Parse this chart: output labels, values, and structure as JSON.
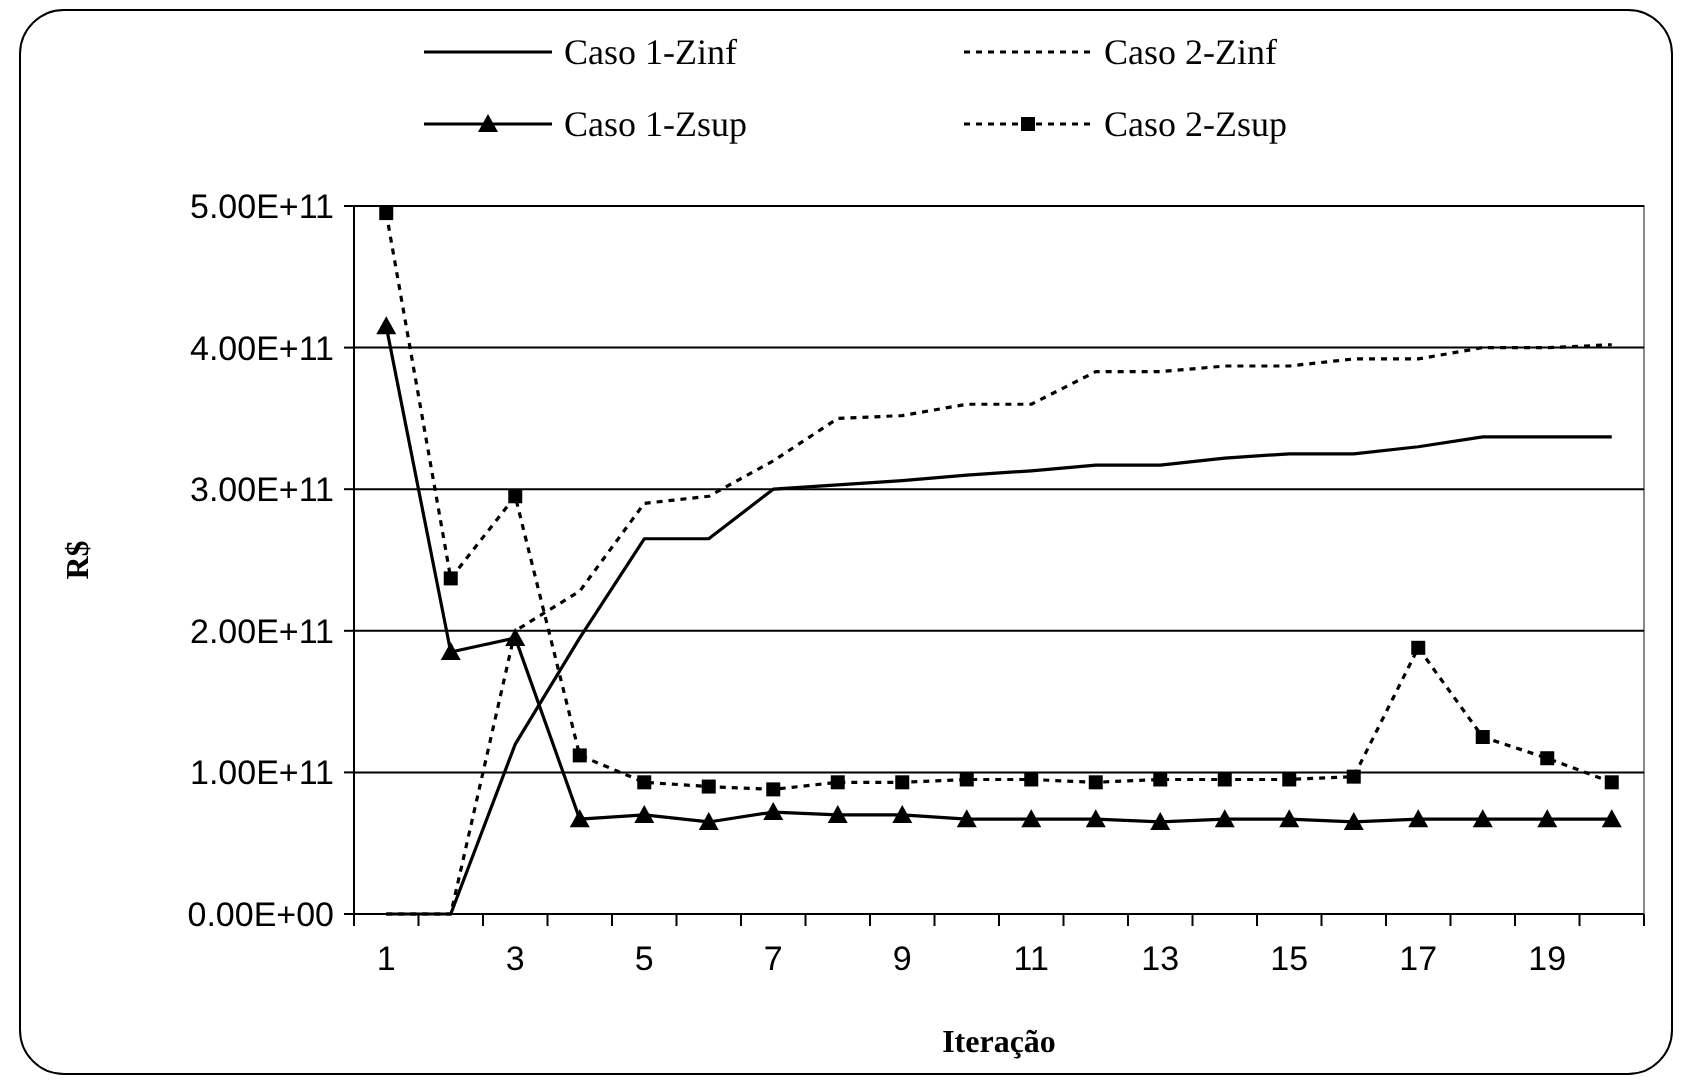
{
  "chart_data": {
    "type": "line",
    "xlabel": "Iteração",
    "ylabel": "R$",
    "x": [
      1,
      2,
      3,
      4,
      5,
      6,
      7,
      8,
      9,
      10,
      11,
      12,
      13,
      14,
      15,
      16,
      17,
      18,
      19,
      20
    ],
    "xlim": [
      0.5,
      20.5
    ],
    "xticks": [
      {
        "value": 0.5,
        "label": null
      },
      1,
      {
        "value": 1.5,
        "label": null
      },
      {
        "value": 2.5,
        "label": null
      },
      3,
      {
        "value": 3.5,
        "label": null
      },
      {
        "value": 4.5,
        "label": null
      },
      5,
      {
        "value": 5.5,
        "label": null
      },
      {
        "value": 6.5,
        "label": null
      },
      7,
      {
        "value": 7.5,
        "label": null
      },
      {
        "value": 8.5,
        "label": null
      },
      9,
      {
        "value": 9.5,
        "label": null
      },
      {
        "value": 10.5,
        "label": null
      },
      11,
      {
        "value": 11.5,
        "label": null
      },
      {
        "value": 12.5,
        "label": null
      },
      13,
      {
        "value": 13.5,
        "label": null
      },
      {
        "value": 14.5,
        "label": null
      },
      15,
      {
        "value": 15.5,
        "label": null
      },
      {
        "value": 16.5,
        "label": null
      },
      17,
      {
        "value": 17.5,
        "label": null
      },
      {
        "value": 18.5,
        "label": null
      },
      19,
      {
        "value": 19.5,
        "label": null
      },
      {
        "value": 20.5,
        "label": null
      }
    ],
    "ylim": [
      0,
      500000000000
    ],
    "yticks": [
      {
        "value": 0,
        "label": "0.00E+00"
      },
      {
        "value": 100000000000,
        "label": "1.00E+11"
      },
      {
        "value": 200000000000,
        "label": "2.00E+11"
      },
      {
        "value": 300000000000,
        "label": "3.00E+11"
      },
      {
        "value": 400000000000,
        "label": "4.00E+11"
      },
      {
        "value": 500000000000,
        "label": "5.00E+11"
      }
    ],
    "grid": "y",
    "legend": "top",
    "series": [
      {
        "name": "Caso 1-Zinf",
        "color": "#000000",
        "marker": "none",
        "line_style": "solid",
        "values": [
          0,
          0,
          120000000000,
          195000000000,
          265000000000,
          265000000000,
          300000000000,
          303000000000,
          306000000000,
          310000000000,
          313000000000,
          317000000000,
          317000000000,
          322000000000,
          325000000000,
          325000000000,
          330000000000,
          337000000000,
          337000000000,
          337000000000
        ]
      },
      {
        "name": "Caso 2-Zinf",
        "color": "#000000",
        "marker": "none",
        "line_style": "dotted",
        "values": [
          0,
          0,
          200000000000,
          228000000000,
          290000000000,
          295000000000,
          320000000000,
          350000000000,
          352000000000,
          360000000000,
          360000000000,
          383000000000,
          383000000000,
          387000000000,
          387000000000,
          392000000000,
          392000000000,
          400000000000,
          400000000000,
          402000000000
        ]
      },
      {
        "name": "Caso 1-Zsup",
        "color": "#000000",
        "marker": "triangle",
        "line_style": "solid",
        "values": [
          415000000000,
          185000000000,
          195000000000,
          67000000000,
          70000000000,
          65000000000,
          72000000000,
          70000000000,
          70000000000,
          67000000000,
          67000000000,
          67000000000,
          65000000000,
          67000000000,
          67000000000,
          65000000000,
          67000000000,
          67000000000,
          67000000000,
          67000000000
        ]
      },
      {
        "name": "Caso 2-Zsup",
        "color": "#000000",
        "marker": "square",
        "line_style": "dotted",
        "values": [
          495000000000,
          237000000000,
          295000000000,
          112000000000,
          93000000000,
          90000000000,
          88000000000,
          93000000000,
          93000000000,
          95000000000,
          95000000000,
          93000000000,
          95000000000,
          95000000000,
          95000000000,
          97000000000,
          188000000000,
          125000000000,
          110000000000,
          93000000000
        ]
      }
    ]
  }
}
